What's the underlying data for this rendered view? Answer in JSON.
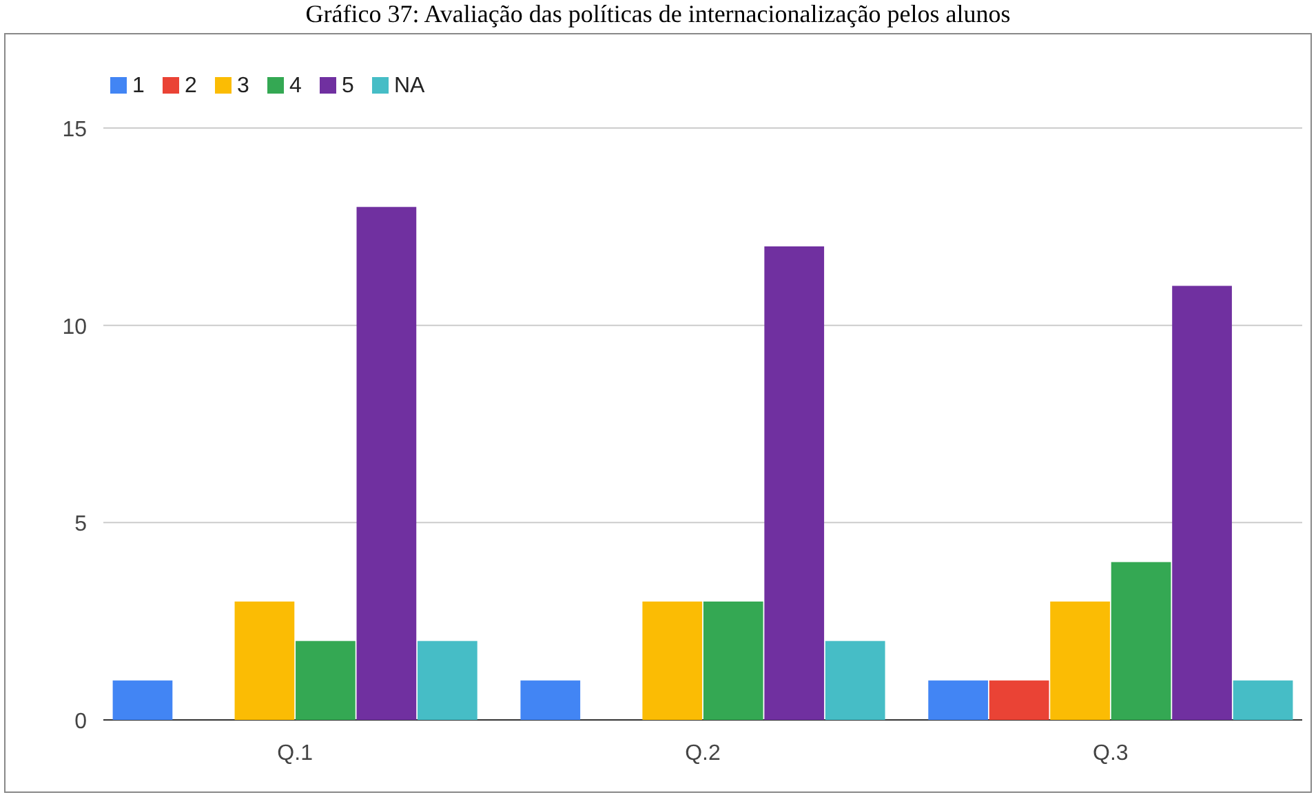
{
  "chart_data": {
    "type": "bar",
    "title": "Gráfico 37: Avaliação das políticas de internacionalização pelos alunos",
    "categories": [
      "Q.1",
      "Q.2",
      "Q.3"
    ],
    "series": [
      {
        "name": "1",
        "color": "#4285f4",
        "values": [
          1,
          1,
          1
        ]
      },
      {
        "name": "2",
        "color": "#ea4335",
        "values": [
          0,
          0,
          1
        ]
      },
      {
        "name": "3",
        "color": "#fbbc04",
        "values": [
          3,
          3,
          3
        ]
      },
      {
        "name": "4",
        "color": "#34a853",
        "values": [
          2,
          3,
          4
        ]
      },
      {
        "name": "5",
        "color": "#7030a0",
        "values": [
          13,
          12,
          11
        ]
      },
      {
        "name": "NA",
        "color": "#46bdc6",
        "values": [
          2,
          2,
          1
        ]
      }
    ],
    "ylim": [
      0,
      15
    ],
    "yticks": [
      0,
      5,
      10,
      15
    ],
    "grid": "y",
    "legend": "top left"
  }
}
